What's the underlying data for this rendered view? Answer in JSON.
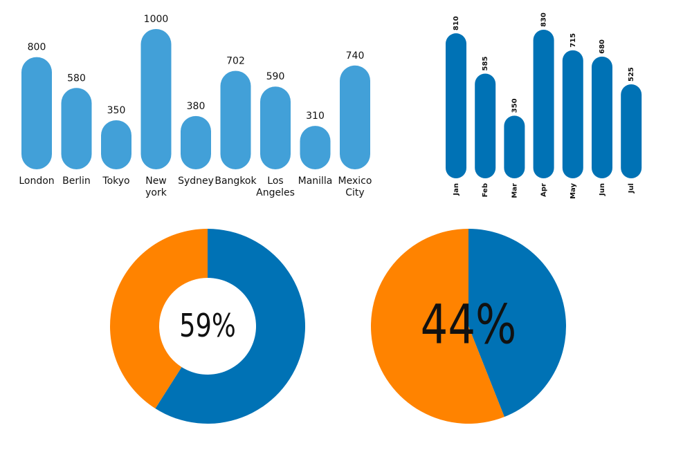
{
  "chart_data": [
    {
      "type": "bar",
      "categories": [
        "London",
        "Berlin",
        "Tokyo",
        "New york",
        "Sydney",
        "Bangkok",
        "Los Angeles",
        "Manilla",
        "Mexico City"
      ],
      "values": [
        800,
        580,
        350,
        1000,
        380,
        702,
        590,
        310,
        740
      ],
      "color": "#42a0d8"
    },
    {
      "type": "bar",
      "categories": [
        "Jan",
        "Feb",
        "Mar",
        "Apr",
        "May",
        "Jun",
        "Jul"
      ],
      "values": [
        810,
        585,
        350,
        830,
        715,
        680,
        525
      ],
      "color": "#0072b5"
    },
    {
      "type": "donut",
      "values": [
        59,
        41
      ],
      "colors": [
        "#0072b5",
        "#ff8300"
      ],
      "center_label": "59%"
    },
    {
      "type": "pie",
      "values": [
        44,
        56
      ],
      "colors": [
        "#0072b5",
        "#ff8300"
      ],
      "center_label": "44%"
    }
  ]
}
